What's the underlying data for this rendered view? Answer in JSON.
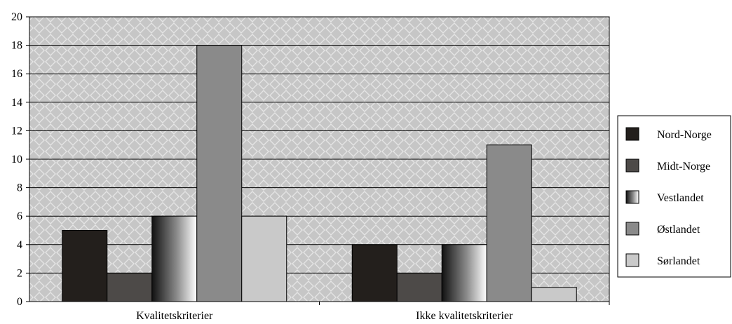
{
  "chart_data": {
    "type": "bar",
    "categories": [
      "Kvalitetskriterier",
      "Ikke kvalitetskriterier"
    ],
    "series": [
      {
        "name": "Nord-Norge",
        "values": [
          5,
          4
        ],
        "color": "#231f1c"
      },
      {
        "name": "Midt-Norge",
        "values": [
          2,
          2
        ],
        "color": "#4d4a48"
      },
      {
        "name": "Vestlandet",
        "values": [
          6,
          4
        ],
        "color": "gradient"
      },
      {
        "name": "Østlandet",
        "values": [
          18,
          11
        ],
        "color": "#8a8a8a"
      },
      {
        "name": "Sørlandet",
        "values": [
          6,
          1
        ],
        "color": "#c9c9c9"
      }
    ],
    "ylim": [
      0,
      20
    ],
    "yticks": [
      "0",
      "2",
      "4",
      "6",
      "8",
      "10",
      "12",
      "14",
      "16",
      "18",
      "20"
    ],
    "grid": true,
    "legend_position": "right",
    "title": "",
    "xlabel": "",
    "ylabel": ""
  }
}
